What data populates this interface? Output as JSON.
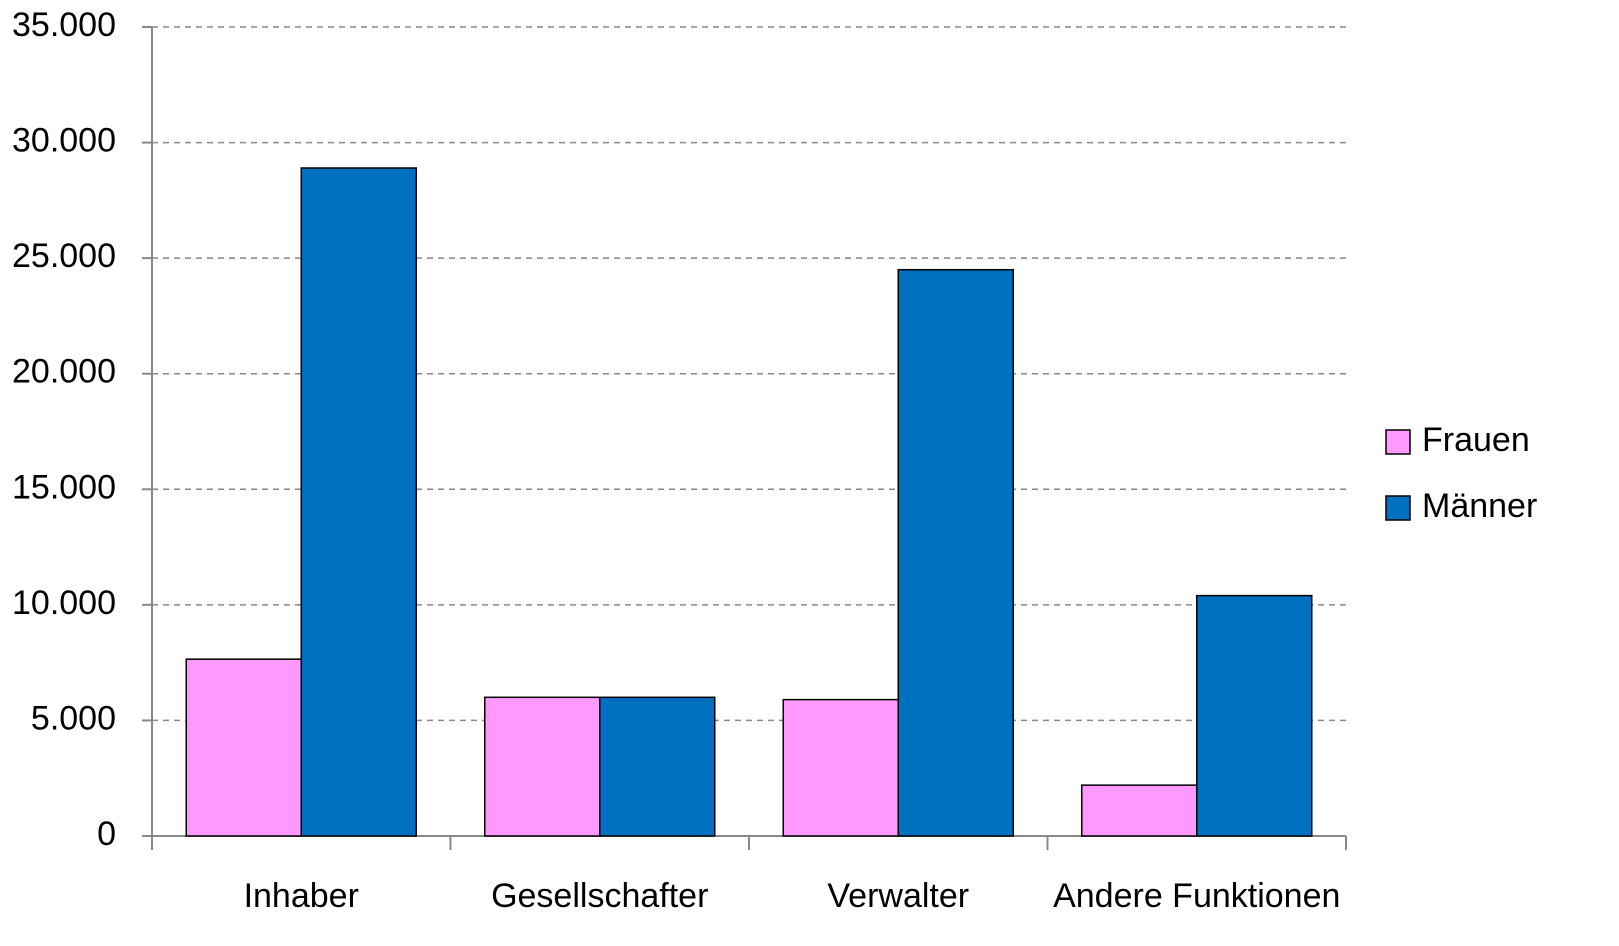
{
  "chart_data": {
    "type": "bar",
    "categories": [
      "Inhaber",
      "Gesellschafter",
      "Verwalter",
      "Andere Funktionen"
    ],
    "series": [
      {
        "name": "Frauen",
        "color": "#ff99ff",
        "values": [
          7650,
          6000,
          5900,
          2200
        ]
      },
      {
        "name": "Männer",
        "color": "#0070c0",
        "values": [
          28900,
          6000,
          24500,
          10400
        ]
      }
    ],
    "ylim": [
      0,
      35000
    ],
    "yticks": [
      0,
      {
        "value": 5000,
        "label": "5.000"
      },
      {
        "value": 10000,
        "label": "10.000"
      },
      {
        "value": 15000,
        "label": "15.000"
      },
      {
        "value": 20000,
        "label": "20.000"
      },
      {
        "value": 25000,
        "label": "25.000"
      },
      {
        "value": 30000,
        "label": "30.000"
      },
      {
        "value": 35000,
        "label": "35.000"
      }
    ],
    "grid": true,
    "legend": "right"
  }
}
